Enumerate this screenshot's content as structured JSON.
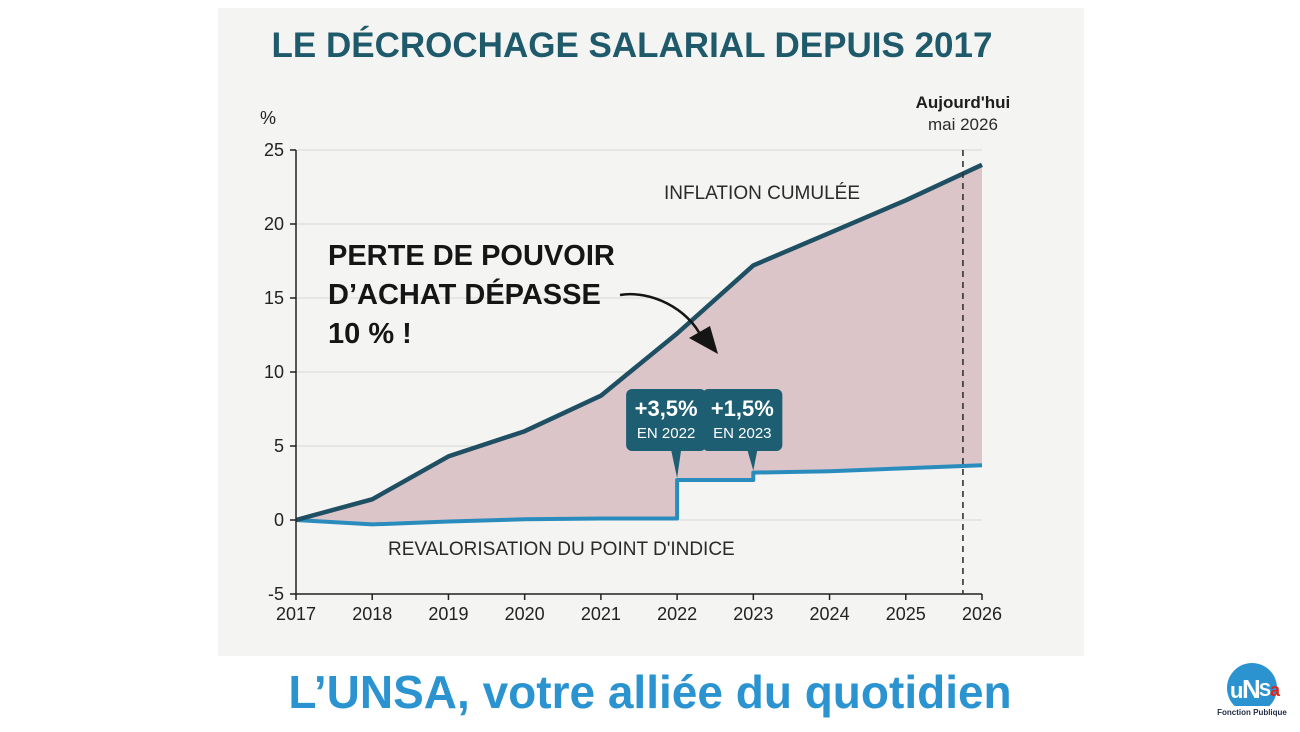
{
  "chart_data": {
    "type": "area",
    "title": "LE DÉCROCHAGE SALARIAL DEPUIS 2017",
    "ylabel": "%",
    "x": [
      2017,
      2018,
      2019,
      2020,
      2021,
      2022,
      2023,
      2024,
      2025,
      2026
    ],
    "xtick_labels": [
      "2017",
      "2018",
      "2019",
      "2020",
      "2021",
      "2022",
      "2023",
      "2024",
      "2025",
      "2026"
    ],
    "ytick_labels": [
      "-5",
      "0",
      "5",
      "10",
      "15",
      "20",
      "25"
    ],
    "yticks": [
      -5,
      0,
      5,
      10,
      15,
      20,
      25
    ],
    "xlim": [
      2017,
      2026
    ],
    "ylim": [
      -5,
      25
    ],
    "series": [
      {
        "name": "INFLATION CUMULÉE",
        "color": "#1f4f62",
        "points": [
          [
            2017,
            0
          ],
          [
            2018,
            1.4
          ],
          [
            2019,
            4.3
          ],
          [
            2020,
            6.0
          ],
          [
            2021,
            8.4
          ],
          [
            2022,
            12.6
          ],
          [
            2023,
            17.2
          ],
          [
            2024,
            19.4
          ],
          [
            2025,
            21.6
          ],
          [
            2026,
            24.0
          ]
        ]
      },
      {
        "name": "REVALORISATION DU POINT D'INDICE",
        "color": "#2a8cbd",
        "points": [
          [
            2017,
            0
          ],
          [
            2018,
            -0.3
          ],
          [
            2019,
            -0.1
          ],
          [
            2020,
            0.05
          ],
          [
            2021,
            0.1
          ],
          [
            2022,
            0.1
          ],
          [
            2022,
            2.7
          ],
          [
            2023,
            2.7
          ],
          [
            2023,
            3.2
          ],
          [
            2024,
            3.3
          ],
          [
            2025,
            3.5
          ],
          [
            2026,
            3.7
          ]
        ]
      }
    ],
    "fill_color": "#dcc5c8",
    "callout": [
      "PERTE DE POUVOIR",
      "D’ACHAT DÉPASSE",
      "10 % !"
    ],
    "badges": [
      {
        "main": "+3,5%",
        "sub": "EN 2022",
        "x": 2022,
        "y": 2.7
      },
      {
        "main": "+1,5%",
        "sub": "EN 2023",
        "x": 2023,
        "y": 3.2
      }
    ],
    "today": {
      "label": "Aujourd'hui",
      "sublabel": "mai 2026",
      "x": 2025.75
    },
    "grid": true,
    "legend": "none"
  },
  "tagline": "L’UNSA, votre alliée du quotidien",
  "logo": {
    "letters": [
      "u",
      "N",
      "S",
      "a"
    ],
    "caption": "Fonction Publique"
  },
  "colors": {
    "accent": "#2b94d0",
    "dark_teal": "#1f5a6b",
    "badge": "#1e5e73"
  }
}
